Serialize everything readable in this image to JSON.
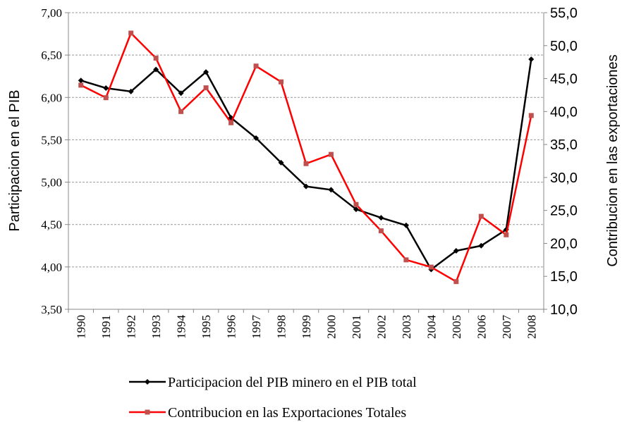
{
  "chart_data": {
    "type": "line",
    "y_label": "Participacion en el PIB",
    "y2_label": "Contribucion en las exportaciones",
    "categories": [
      "1990",
      "1991",
      "1992",
      "1993",
      "1994",
      "1995",
      "1996",
      "1997",
      "1998",
      "1999",
      "2000",
      "2001",
      "2002",
      "2003",
      "2004",
      "2005",
      "2006",
      "2007",
      "2008"
    ],
    "series": [
      {
        "name": "Participacion del PIB minero en el PIB total",
        "color": "#000000",
        "marker": "diamond",
        "values": [
          6.2,
          6.11,
          6.07,
          6.33,
          6.05,
          6.3,
          5.76,
          5.52,
          5.23,
          4.95,
          4.91,
          4.68,
          4.58,
          4.49,
          3.97,
          4.19,
          4.25,
          4.44,
          6.45
        ]
      },
      {
        "name": "Contribucion en las Exportaciones Totales",
        "color": "#ff0000",
        "marker_color": "#c0504d",
        "marker": "square",
        "axis": "y2",
        "values": [
          44.0,
          42.1,
          51.9,
          48.1,
          40.0,
          43.6,
          38.3,
          46.9,
          44.5,
          32.1,
          33.5,
          25.9,
          21.9,
          17.5,
          16.4,
          14.2,
          24.1,
          21.3,
          39.4
        ]
      }
    ],
    "ylim": [
      3.5,
      7.0
    ],
    "yticks": [
      {
        "value": 3.5,
        "label": "3,50"
      },
      {
        "value": 4.0,
        "label": "4,00"
      },
      {
        "value": 4.5,
        "label": "4,50"
      },
      {
        "value": 5.0,
        "label": "5,00"
      },
      {
        "value": 5.5,
        "label": "5,50"
      },
      {
        "value": 6.0,
        "label": "6,00"
      },
      {
        "value": 6.5,
        "label": "6,50"
      },
      {
        "value": 7.0,
        "label": "7,00"
      }
    ],
    "y2lim": [
      10,
      55
    ],
    "y2ticks": [
      {
        "value": 10,
        "label": "10,0"
      },
      {
        "value": 15,
        "label": "15,0"
      },
      {
        "value": 20,
        "label": "20,0"
      },
      {
        "value": 25,
        "label": "25,0"
      },
      {
        "value": 30,
        "label": "30,0"
      },
      {
        "value": 35,
        "label": "35,0"
      },
      {
        "value": 40,
        "label": "40,0"
      },
      {
        "value": 45,
        "label": "45,0"
      },
      {
        "value": 50,
        "label": "50,0"
      },
      {
        "value": 55,
        "label": "55,0"
      }
    ],
    "grid": true,
    "legend": "bottom"
  }
}
